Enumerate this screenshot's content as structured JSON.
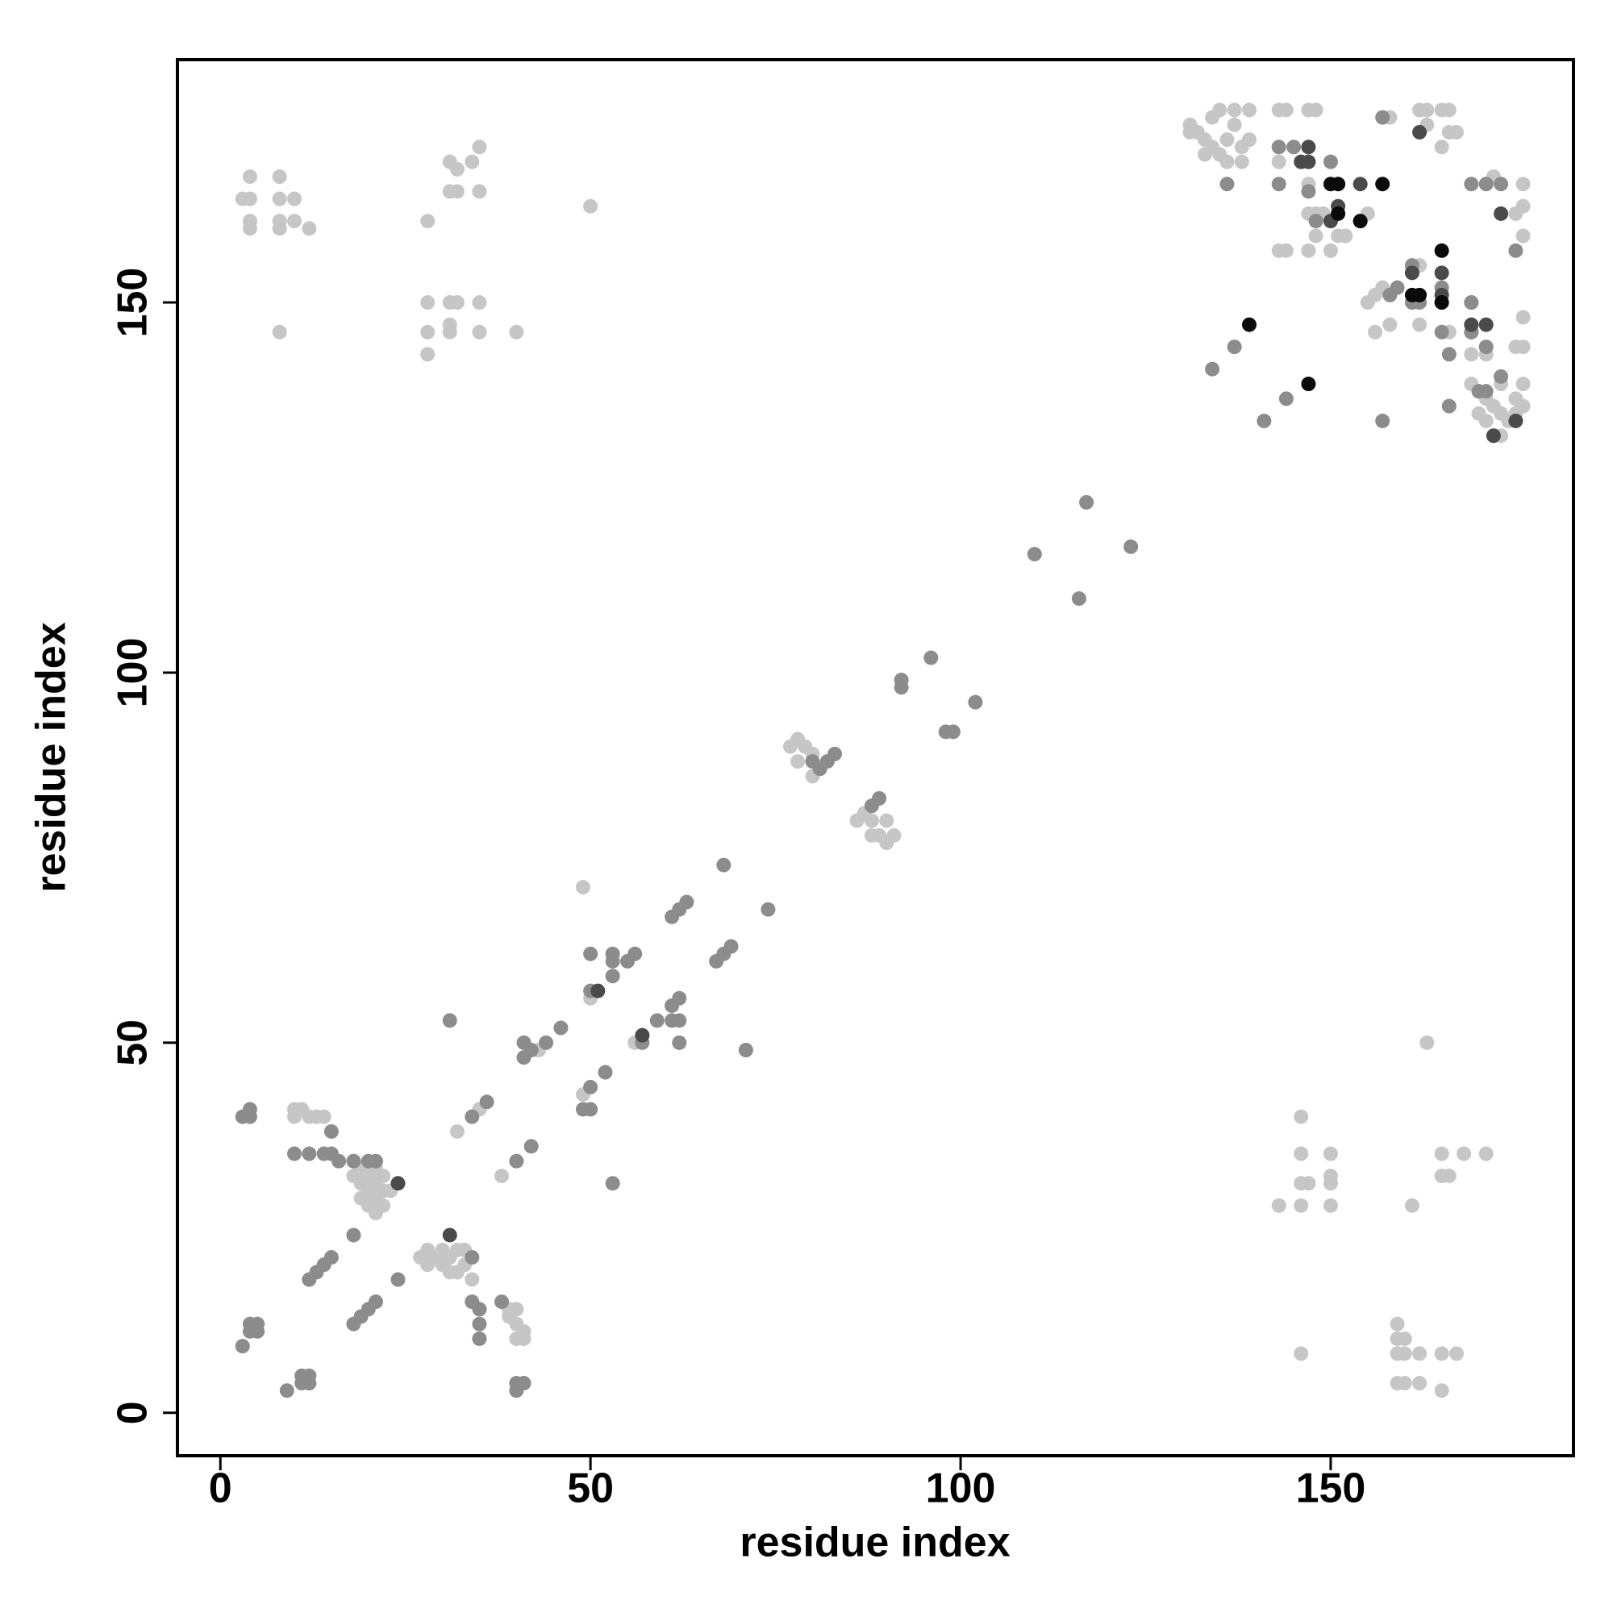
{
  "chart_data": {
    "type": "scatter",
    "xlabel": "residue index",
    "ylabel": "residue index",
    "xlim": [
      -5.8,
      182.8
    ],
    "ylim": [
      -5.8,
      182.8
    ],
    "xticks": [
      0,
      50,
      100,
      150
    ],
    "yticks": [
      0,
      50,
      100,
      150
    ],
    "series": [
      {
        "color": "#c6c6c6",
        "x": [
          4,
          8,
          3,
          4,
          8,
          10,
          4,
          4,
          8,
          10,
          8,
          12,
          8,
          31,
          32,
          35,
          34,
          31,
          32,
          35,
          28,
          50,
          28,
          31,
          32,
          35,
          28,
          31,
          31,
          35,
          40,
          28,
          146,
          146,
          150,
          146,
          147,
          150,
          150,
          143,
          146,
          150,
          161,
          163,
          165,
          168,
          171,
          165,
          166,
          146,
          159,
          159,
          160,
          159,
          160,
          162,
          165,
          167,
          159,
          160,
          162,
          165,
          10,
          11,
          12,
          13,
          14,
          10,
          18,
          19,
          20,
          21,
          20,
          19,
          21,
          22,
          21,
          20,
          18,
          22,
          23,
          19,
          22,
          20,
          21,
          27,
          28,
          29,
          30,
          31,
          32,
          33,
          34,
          30,
          32,
          28,
          33,
          31,
          39,
          40,
          41,
          40,
          41,
          39,
          40,
          50,
          49,
          38,
          32,
          35,
          49,
          56,
          43,
          77,
          78,
          79,
          78,
          80,
          80,
          86,
          87,
          88,
          89,
          90,
          91,
          88,
          90,
          131,
          131,
          132,
          133,
          134,
          135,
          136,
          137,
          135,
          137,
          139,
          136,
          138,
          134,
          139,
          133,
          138,
          143,
          144,
          147,
          148,
          143,
          143,
          144,
          147,
          148,
          149,
          147,
          150,
          148,
          151,
          152,
          147,
          155,
          155,
          156,
          157,
          156,
          158,
          162,
          162,
          158,
          162,
          163,
          165,
          166,
          163,
          166,
          167,
          165,
          166,
          169,
          169,
          170,
          171,
          172,
          173,
          174,
          175,
          176,
          173,
          171,
          173,
          175,
          176,
          170,
          171,
          172,
          176,
          176,
          176,
          175,
          176,
          176,
          175,
          171
        ],
        "values": [
          167,
          167,
          164,
          164,
          164,
          164,
          161,
          160,
          161,
          161,
          160,
          160,
          146,
          169,
          168,
          171,
          169,
          165,
          165,
          165,
          161,
          163,
          150,
          150,
          150,
          150,
          146,
          146,
          147,
          146,
          146,
          143,
          40,
          35,
          35,
          31,
          31,
          31,
          32,
          28,
          28,
          28,
          28,
          50,
          35,
          35,
          35,
          32,
          32,
          8,
          12,
          10,
          10,
          8,
          8,
          8,
          8,
          8,
          4,
          4,
          4,
          3,
          41,
          41,
          40,
          40,
          40,
          40,
          34,
          33,
          32,
          31,
          30,
          31,
          29,
          28,
          27,
          28,
          32,
          32,
          30,
          29,
          30,
          34,
          33,
          21,
          22,
          21,
          20,
          19,
          19,
          20,
          18,
          22,
          22,
          20,
          22,
          21,
          13,
          12,
          11,
          10,
          10,
          14,
          14,
          56,
          71,
          32,
          38,
          41,
          43,
          50,
          49,
          90,
          91,
          90,
          88,
          89,
          86,
          80,
          81,
          80,
          78,
          77,
          78,
          78,
          80,
          174,
          173,
          173,
          172,
          171,
          170,
          172,
          174,
          176,
          176,
          176,
          169,
          171,
          175,
          172,
          170,
          169,
          176,
          176,
          176,
          176,
          169,
          157,
          157,
          162,
          162,
          162,
          157,
          157,
          159,
          159,
          159,
          166,
          162,
          150,
          151,
          152,
          146,
          147,
          147,
          155,
          175,
          176,
          176,
          176,
          176,
          174,
          173,
          173,
          171,
          146,
          143,
          139,
          138,
          137,
          136,
          135,
          134,
          137,
          139,
          139,
          134,
          132,
          135,
          136,
          135,
          166,
          167,
          166,
          163,
          159,
          162,
          148,
          144,
          144,
          143
        ]
      },
      {
        "color": "#8c8c8c",
        "x": [
          3,
          4,
          5,
          4,
          5,
          3,
          4,
          4,
          9,
          11,
          12,
          11,
          12,
          10,
          12,
          14,
          15,
          16,
          15,
          12,
          13,
          14,
          15,
          18,
          19,
          20,
          21,
          18,
          24,
          18,
          20,
          21,
          31,
          34,
          36,
          34,
          34,
          35,
          35,
          35,
          38,
          40,
          41,
          40,
          40,
          42,
          41,
          41,
          42,
          44,
          46,
          49,
          50,
          50,
          52,
          53,
          50,
          50,
          53,
          53,
          53,
          55,
          56,
          57,
          59,
          61,
          62,
          61,
          62,
          62,
          61,
          62,
          63,
          67,
          68,
          69,
          68,
          74,
          71,
          80,
          81,
          82,
          83,
          89,
          88,
          92,
          92,
          96,
          98,
          99,
          102,
          110,
          117,
          116,
          123,
          134,
          137,
          141,
          144,
          136,
          143,
          145,
          143,
          150,
          154,
          161,
          161,
          162,
          165,
          165,
          165,
          169,
          169,
          171,
          166,
          166,
          171,
          173,
          175,
          147,
          148,
          157,
          158,
          159,
          169,
          171,
          173,
          170,
          157,
          169,
          169
        ],
        "values": [
          9,
          12,
          12,
          11,
          11,
          40,
          40,
          41,
          3,
          5,
          5,
          4,
          4,
          35,
          35,
          35,
          35,
          34,
          38,
          18,
          19,
          20,
          21,
          12,
          13,
          14,
          15,
          24,
          18,
          34,
          34,
          34,
          53,
          40,
          42,
          21,
          15,
          14,
          12,
          10,
          15,
          4,
          4,
          3,
          34,
          36,
          50,
          48,
          49,
          50,
          52,
          41,
          41,
          44,
          46,
          31,
          62,
          57,
          62,
          61,
          59,
          61,
          62,
          50,
          53,
          53,
          53,
          55,
          56,
          50,
          67,
          68,
          69,
          61,
          62,
          63,
          74,
          68,
          49,
          88,
          87,
          88,
          89,
          83,
          82,
          99,
          98,
          102,
          92,
          92,
          96,
          116,
          123,
          110,
          117,
          141,
          144,
          134,
          137,
          166,
          166,
          171,
          171,
          169,
          161,
          155,
          150,
          150,
          152,
          150,
          146,
          150,
          146,
          144,
          143,
          136,
          166,
          166,
          157,
          165,
          161,
          175,
          151,
          152,
          150,
          138,
          140,
          138,
          134,
          166,
          146
        ]
      },
      {
        "color": "#4a4a4a",
        "x": [
          24,
          51,
          57,
          31,
          147,
          147,
          146,
          151,
          150,
          154,
          161,
          165,
          165,
          171,
          169,
          173,
          162,
          175,
          172
        ],
        "values": [
          31,
          57,
          51,
          24,
          171,
          169,
          169,
          163,
          161,
          166,
          154,
          154,
          151,
          147,
          147,
          162,
          173,
          134,
          132
        ]
      },
      {
        "color": "#0a0a0a",
        "x": [
          139,
          147,
          150,
          151,
          151,
          157,
          161,
          162,
          165,
          165,
          154
        ],
        "values": [
          147,
          139,
          166,
          166,
          162,
          166,
          151,
          151,
          157,
          150,
          161
        ]
      }
    ]
  }
}
